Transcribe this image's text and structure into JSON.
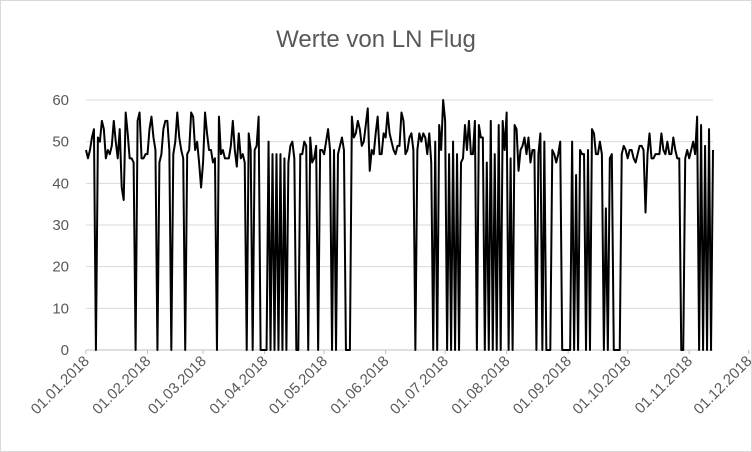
{
  "chart_data": {
    "type": "line",
    "title": "Werte von LN Flug",
    "xlabel": "",
    "ylabel": "",
    "ylim": [
      0,
      60
    ],
    "yticks": [
      0,
      10,
      20,
      30,
      40,
      50,
      60
    ],
    "grid": true,
    "legend": "none",
    "x_date_range": [
      "01.01.2018",
      "31.12.2018"
    ],
    "xtick_labels": [
      "01.01.2018",
      "01.02.2018",
      "01.03.2018",
      "01.04.2018",
      "01.05.2018",
      "01.06.2018",
      "01.07.2018",
      "01.08.2018",
      "01.09.2018",
      "01.10.2018",
      "01.11.2018",
      "01.12.2018"
    ],
    "colors": {
      "series": "#000000",
      "grid": "#d9d9d9",
      "text": "#595959"
    },
    "series": [
      {
        "values": [
          48,
          46,
          48,
          51,
          53,
          0,
          51,
          50,
          55,
          53,
          46,
          48,
          47,
          49,
          55,
          50,
          46,
          53,
          39,
          36,
          57,
          52,
          46,
          46,
          45,
          0,
          55,
          57,
          46,
          46,
          47,
          47,
          53,
          56,
          51,
          48,
          0,
          45,
          47,
          53,
          55,
          55,
          48,
          0,
          47,
          50,
          57,
          51,
          48,
          46,
          0,
          47,
          48,
          57,
          56,
          48,
          50,
          45,
          39,
          45,
          57,
          52,
          48,
          48,
          45,
          46,
          0,
          56,
          47,
          48,
          46,
          46,
          46,
          49,
          55,
          48,
          44,
          52,
          46,
          47,
          45,
          0,
          52,
          48,
          0,
          48,
          49,
          56,
          0,
          0,
          0,
          0,
          50,
          0,
          47,
          0,
          47,
          0,
          47,
          0,
          46,
          0,
          45,
          49,
          50,
          46,
          0,
          0,
          47,
          47,
          50,
          49,
          0,
          51,
          45,
          46,
          49,
          0,
          48,
          48,
          47,
          50,
          53,
          48,
          0,
          48,
          0,
          47,
          49,
          51,
          48,
          0,
          0,
          0,
          56,
          51,
          52,
          55,
          53,
          49,
          50,
          54,
          58,
          43,
          48,
          47,
          52,
          56,
          47,
          47,
          52,
          51,
          57,
          52,
          50,
          48,
          47,
          49,
          49,
          57,
          55,
          47,
          48,
          51,
          52,
          48,
          0,
          48,
          52,
          50,
          52,
          51,
          47,
          52,
          45,
          0,
          50,
          0,
          54,
          48,
          60,
          55,
          0,
          47,
          0,
          50,
          0,
          47,
          0,
          45,
          46,
          54,
          48,
          55,
          47,
          47,
          55,
          0,
          54,
          51,
          51,
          0,
          45,
          0,
          55,
          0,
          47,
          0,
          54,
          0,
          55,
          48,
          57,
          0,
          46,
          0,
          54,
          53,
          43,
          48,
          49,
          51,
          47,
          51,
          45,
          48,
          48,
          0,
          47,
          52,
          0,
          50,
          0,
          0,
          0,
          48,
          47,
          45,
          47,
          50,
          0,
          0,
          0,
          0,
          0,
          50,
          0,
          42,
          0,
          48,
          47,
          47,
          0,
          48,
          0,
          53,
          52,
          47,
          47,
          50,
          47,
          0,
          34,
          0,
          46,
          47,
          0,
          0,
          0,
          0,
          47,
          49,
          48,
          46,
          48,
          48,
          46,
          45,
          47,
          49,
          49,
          48,
          33,
          47,
          52,
          46,
          46,
          47,
          47,
          47,
          52,
          48,
          47,
          50,
          47,
          47,
          51,
          48,
          46,
          46,
          0,
          0,
          46,
          48,
          46,
          48,
          50,
          47,
          56,
          0,
          54,
          0,
          49,
          0,
          53,
          0,
          48
        ]
      }
    ]
  }
}
